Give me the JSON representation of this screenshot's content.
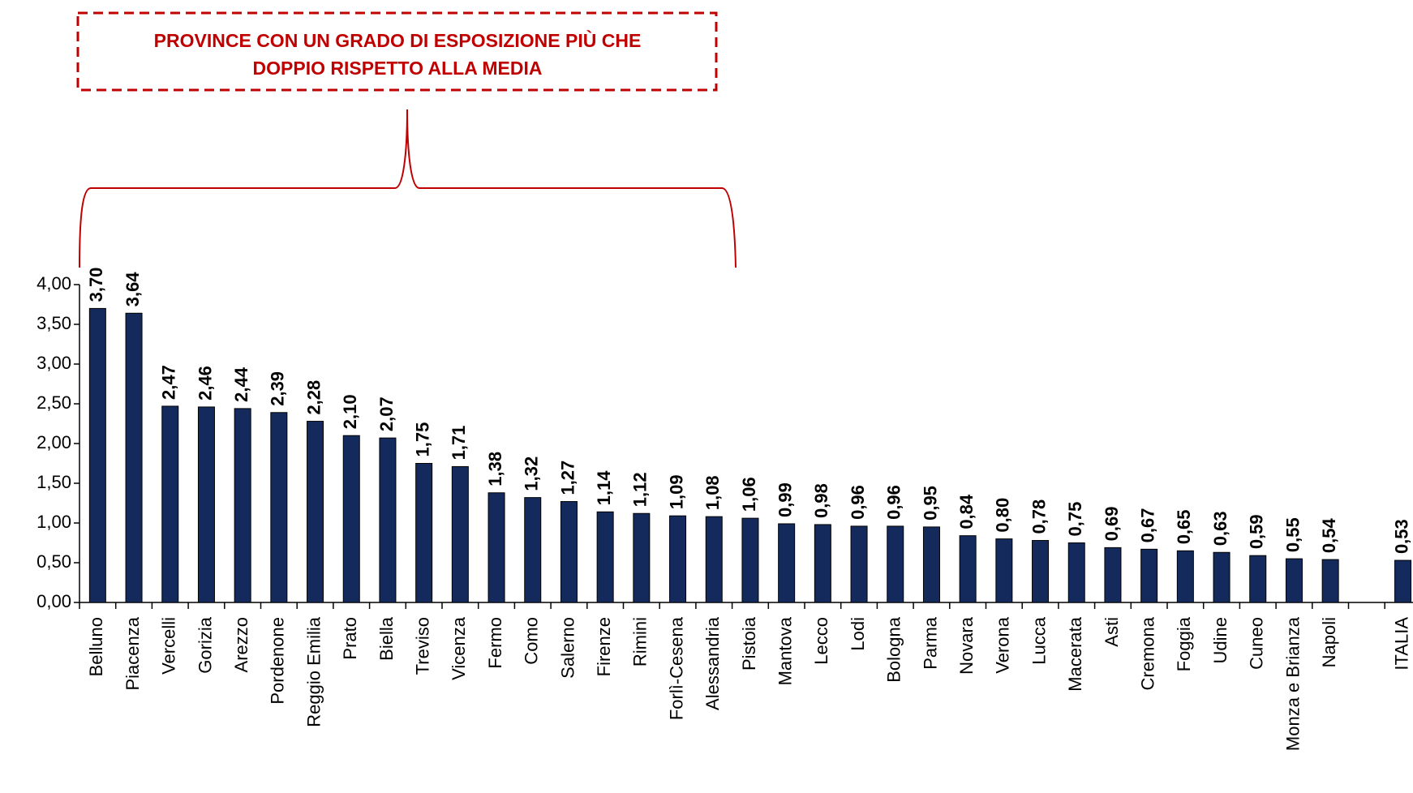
{
  "chart_data": {
    "type": "bar",
    "annotation": [
      "PROVINCE CON UN GRADO DI ESPOSIZIONE PIÙ CHE",
      "DOPPIO RISPETTO ALLA MEDIA"
    ],
    "categories": [
      "Belluno",
      "Piacenza",
      "Vercelli",
      "Gorizia",
      "Arezzo",
      "Pordenone",
      "Reggio Emilia",
      "Prato",
      "Biella",
      "Treviso",
      "Vicenza",
      "Fermo",
      "Como",
      "Salerno",
      "Firenze",
      "Rimini",
      "Forlì-Cesena",
      "Alessandria",
      "Pistoia",
      "Mantova",
      "Lecco",
      "Lodi",
      "Bologna",
      "Parma",
      "Novara",
      "Verona",
      "Lucca",
      "Macerata",
      "Asti",
      "Cremona",
      "Foggia",
      "Udine",
      "Cuneo",
      "Monza e Brianza",
      "Napoli",
      null,
      "ITALIA"
    ],
    "values": [
      3.7,
      3.64,
      2.47,
      2.46,
      2.44,
      2.39,
      2.28,
      2.1,
      2.07,
      1.75,
      1.71,
      1.38,
      1.32,
      1.27,
      1.14,
      1.12,
      1.09,
      1.08,
      1.06,
      0.99,
      0.98,
      0.96,
      0.96,
      0.95,
      0.84,
      0.8,
      0.78,
      0.75,
      0.69,
      0.67,
      0.65,
      0.63,
      0.59,
      0.55,
      0.54,
      null,
      0.53
    ],
    "value_labels": [
      "3,70",
      "3,64",
      "2,47",
      "2,46",
      "2,44",
      "2,39",
      "2,28",
      "2,10",
      "2,07",
      "1,75",
      "1,71",
      "1,38",
      "1,32",
      "1,27",
      "1,14",
      "1,12",
      "1,09",
      "1,08",
      "1,06",
      "0,99",
      "0,98",
      "0,96",
      "0,96",
      "0,95",
      "0,84",
      "0,80",
      "0,78",
      "0,75",
      "0,69",
      "0,67",
      "0,65",
      "0,63",
      "0,59",
      "0,55",
      "0,54",
      null,
      "0,53"
    ],
    "color": "#142a5c",
    "ylim": [
      0,
      4
    ],
    "yticks": [
      {
        "value": 0,
        "label": "0,00"
      },
      {
        "value": 0.5,
        "label": "0,50"
      },
      {
        "value": 1,
        "label": "1,00"
      },
      {
        "value": 1.5,
        "label": "1,50"
      },
      {
        "value": 2,
        "label": "2,00"
      },
      {
        "value": 2.5,
        "label": "2,50"
      },
      {
        "value": 3,
        "label": "3,00"
      },
      {
        "value": 3.5,
        "label": "3,50"
      },
      {
        "value": 4,
        "label": "4,00"
      }
    ],
    "grid": false
  }
}
